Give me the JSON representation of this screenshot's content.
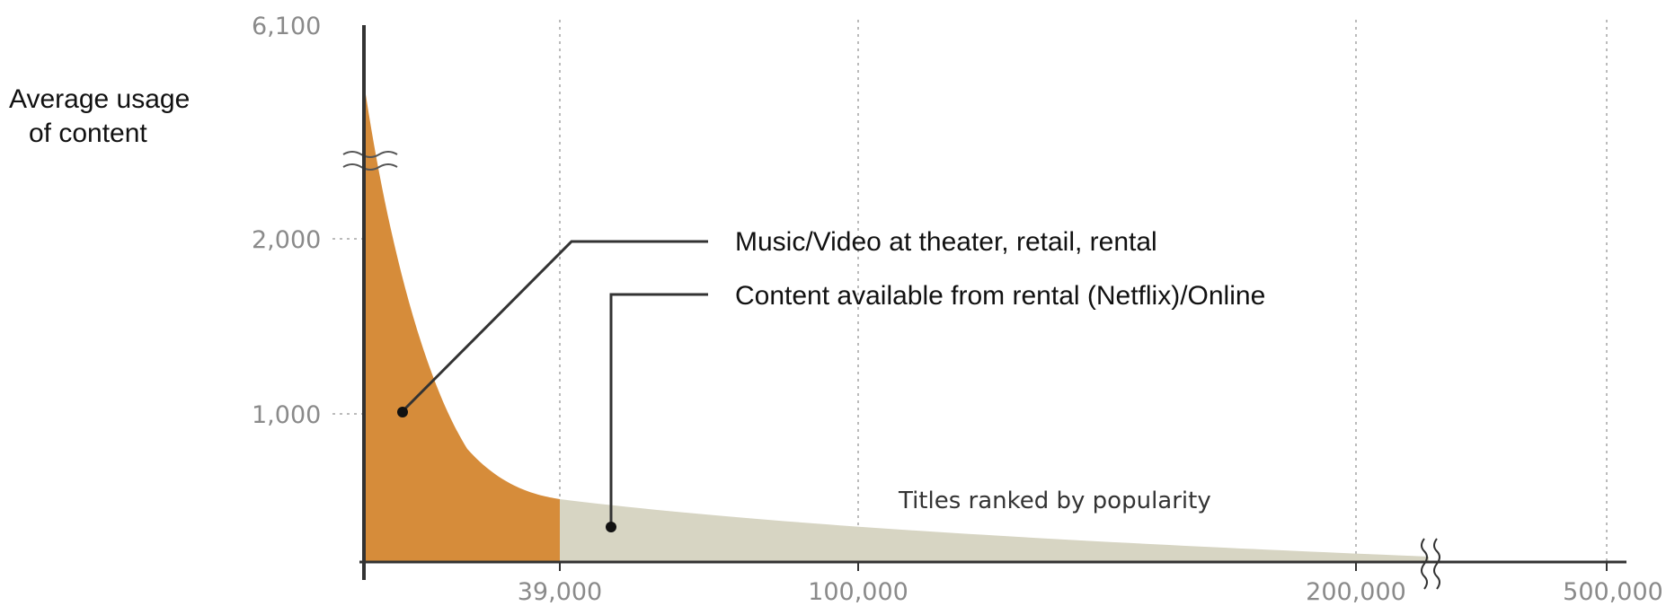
{
  "chart_data": {
    "type": "area",
    "ylabel_lines": [
      "Average usage",
      "of content"
    ],
    "xlabel": "Titles ranked by popularity",
    "x_ticks": [
      "39,000",
      "100,000",
      "200,000",
      "500,000"
    ],
    "y_ticks": [
      "1,000",
      "2,000",
      "6,100"
    ],
    "y_axis_break": true,
    "x_axis_break": true,
    "grid": "vertical dotted",
    "series": [
      {
        "name": "Music/Video at theater, retail, rental",
        "color": "#d68c3a",
        "x_range": [
          "0",
          "39,000"
        ],
        "y_start": 6100,
        "y_end": 350
      },
      {
        "name": "Content available from rental (Netflix)/Online",
        "color": "#d7d5c3",
        "x_range": [
          "39,000",
          "500,000"
        ],
        "y_start": 350,
        "y_end": 30
      }
    ],
    "curve_points": [
      {
        "x": "0",
        "y": 6100
      },
      {
        "x": "10,000",
        "y": 1200
      },
      {
        "x": "20,000",
        "y": 700
      },
      {
        "x": "39,000",
        "y": 350
      },
      {
        "x": "100,000",
        "y": 180
      },
      {
        "x": "200,000",
        "y": 40
      },
      {
        "x": "500,000",
        "y": 30
      }
    ]
  },
  "colors": {
    "axis": "#333333",
    "grid": "#bbbbbb",
    "tick_text": "#8a8a8a"
  }
}
